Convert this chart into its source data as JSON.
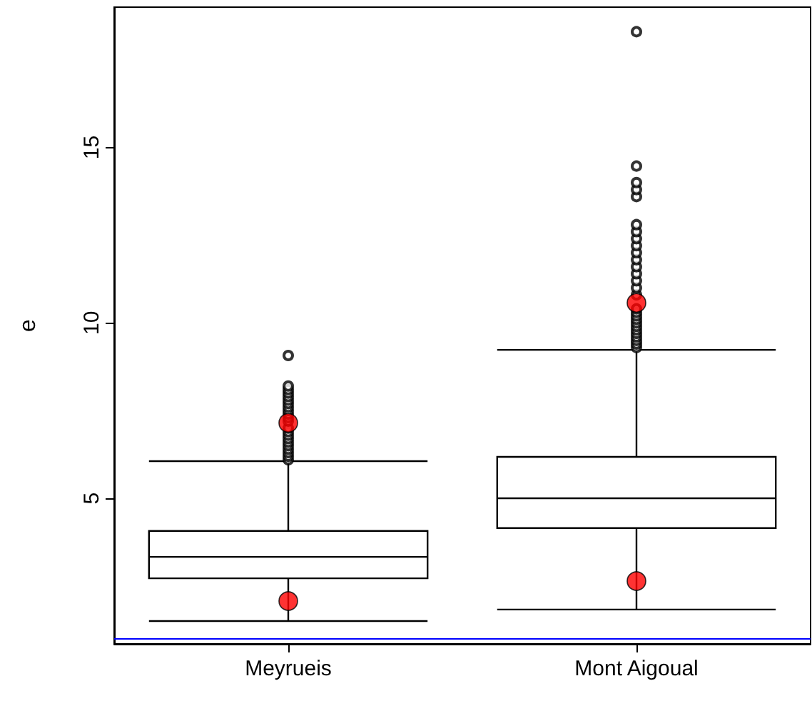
{
  "chart_data": {
    "type": "box",
    "ylabel": "e",
    "categories": [
      "Meyrueis",
      "Mont Aigoual"
    ],
    "boxes": [
      {
        "low": 1.5,
        "q1": 2.72,
        "median": 3.33,
        "q3": 4.07,
        "high": 6.06,
        "outliers": [
          6.1,
          6.2,
          6.3,
          6.4,
          6.5,
          6.6,
          6.7,
          6.8,
          6.9,
          7.0,
          7.2,
          7.3,
          7.4,
          7.5,
          7.6,
          7.7,
          7.8,
          7.9,
          8.0,
          8.1,
          8.2,
          9.07
        ]
      },
      {
        "low": 1.83,
        "q1": 4.15,
        "median": 5.0,
        "q3": 6.18,
        "high": 9.23,
        "outliers": [
          9.3,
          9.4,
          9.5,
          9.6,
          9.7,
          9.8,
          9.9,
          10.0,
          10.1,
          10.2,
          10.3,
          10.4,
          10.8,
          11.0,
          11.2,
          11.4,
          11.6,
          11.8,
          12.0,
          12.2,
          12.4,
          12.6,
          12.8,
          13.6,
          13.8,
          14.0,
          14.47,
          18.3
        ]
      }
    ],
    "color": "#000000",
    "series": [
      {
        "type": "scatter",
        "x": [
          "Meyrueis",
          "Meyrueis",
          "Mont Aigoual",
          "Mont Aigoual"
        ],
        "values": [
          7.15,
          2.07,
          10.57,
          2.64
        ],
        "color": "#ff0000",
        "marker": "circle"
      }
    ],
    "ref_lines": [
      {
        "axis": "y",
        "value": 1,
        "color": "#0000ff"
      }
    ],
    "ylim": [
      0.85,
      19
    ],
    "yticks": [
      5,
      10,
      15
    ],
    "grid": false
  }
}
